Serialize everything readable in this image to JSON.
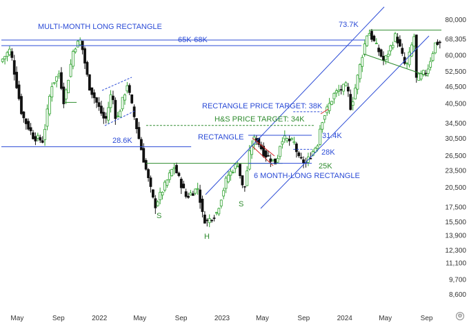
{
  "chart_data": {
    "type": "candlestick",
    "price_scale": "log",
    "ylim": [
      8000,
      90000
    ],
    "y_ticks": [
      {
        "label": "80,000",
        "value": 80000
      },
      {
        "label": "68,305",
        "value": 68305
      },
      {
        "label": "60,000",
        "value": 60000
      },
      {
        "label": "52,500",
        "value": 52500
      },
      {
        "label": "46,500",
        "value": 46500
      },
      {
        "label": "40,500",
        "value": 40500
      },
      {
        "label": "34,500",
        "value": 34500
      },
      {
        "label": "30,500",
        "value": 30500
      },
      {
        "label": "26,500",
        "value": 26500
      },
      {
        "label": "23,500",
        "value": 23500
      },
      {
        "label": "20,500",
        "value": 20500
      },
      {
        "label": "17,500",
        "value": 17500
      },
      {
        "label": "15,500",
        "value": 15500
      },
      {
        "label": "13,900",
        "value": 13900
      },
      {
        "label": "12,300",
        "value": 12300
      },
      {
        "label": "11,100",
        "value": 11100
      },
      {
        "label": "9,700",
        "value": 9700
      },
      {
        "label": "8,600",
        "value": 8600
      }
    ],
    "x_start": "2021-03-15",
    "x_end": "2024-10-15",
    "x_ticks": [
      {
        "label": "May",
        "date": "2021-05-01"
      },
      {
        "label": "Sep",
        "date": "2021-09-01"
      },
      {
        "label": "2022",
        "date": "2022-01-01"
      },
      {
        "label": "May",
        "date": "2022-05-01"
      },
      {
        "label": "Sep",
        "date": "2022-09-01"
      },
      {
        "label": "2023",
        "date": "2023-01-01"
      },
      {
        "label": "May",
        "date": "2023-05-01"
      },
      {
        "label": "Sep",
        "date": "2023-09-01"
      },
      {
        "label": "2024",
        "date": "2024-01-01"
      },
      {
        "label": "May",
        "date": "2024-05-01"
      },
      {
        "label": "Sep",
        "date": "2024-09-01"
      }
    ],
    "grid": false,
    "colors": {
      "up": "#2ca02c",
      "down": "#111111",
      "blue": "#2b4bd6",
      "green": "#2e8b2e",
      "red": "#d62728"
    },
    "price_points": [
      [
        "2021-03-15",
        57000
      ],
      [
        "2021-04-14",
        63000
      ],
      [
        "2021-05-19",
        37000
      ],
      [
        "2021-06-22",
        31000
      ],
      [
        "2021-07-20",
        30000
      ],
      [
        "2021-08-14",
        47000
      ],
      [
        "2021-09-07",
        52000
      ],
      [
        "2021-09-21",
        41000
      ],
      [
        "2021-10-20",
        64000
      ],
      [
        "2021-11-10",
        68000
      ],
      [
        "2021-12-04",
        47000
      ],
      [
        "2022-01-22",
        35000
      ],
      [
        "2022-02-10",
        45000
      ],
      [
        "2022-02-24",
        35000
      ],
      [
        "2022-03-28",
        47500
      ],
      [
        "2022-05-12",
        27000
      ],
      [
        "2022-06-18",
        17600
      ],
      [
        "2022-07-15",
        20500
      ],
      [
        "2022-08-14",
        24500
      ],
      [
        "2022-09-20",
        19000
      ],
      [
        "2022-10-25",
        20500
      ],
      [
        "2022-11-09",
        16000
      ],
      [
        "2022-11-21",
        15600
      ],
      [
        "2022-12-20",
        16800
      ],
      [
        "2023-01-20",
        22500
      ],
      [
        "2023-02-20",
        25000
      ],
      [
        "2023-03-10",
        19600
      ],
      [
        "2023-03-30",
        28500
      ],
      [
        "2023-04-14",
        31000
      ],
      [
        "2023-05-10",
        27000
      ],
      [
        "2023-06-15",
        25000
      ],
      [
        "2023-06-30",
        30800
      ],
      [
        "2023-08-10",
        29400
      ],
      [
        "2023-08-18",
        26000
      ],
      [
        "2023-09-11",
        25000
      ],
      [
        "2023-10-20",
        30000
      ],
      [
        "2023-10-24",
        34500
      ],
      [
        "2023-12-05",
        44000
      ],
      [
        "2024-01-11",
        47000
      ],
      [
        "2024-01-23",
        39000
      ],
      [
        "2024-02-28",
        62000
      ],
      [
        "2024-03-14",
        73700
      ],
      [
        "2024-05-01",
        57000
      ],
      [
        "2024-06-05",
        71000
      ],
      [
        "2024-07-05",
        54000
      ],
      [
        "2024-07-29",
        70000
      ],
      [
        "2024-08-05",
        49500
      ],
      [
        "2024-09-06",
        53000
      ],
      [
        "2024-09-30",
        66000
      ],
      [
        "2024-10-15",
        67000
      ]
    ],
    "annotations": [
      {
        "text": "MULTI-MONTH LONG RECTANGLE",
        "color": "blue"
      },
      {
        "text": "65K-68K",
        "color": "blue"
      },
      {
        "text": "73.7K",
        "color": "blue"
      },
      {
        "text": "RECTANGLE PRICE TARGET: 38K",
        "color": "blue"
      },
      {
        "text": "H&S PRICE TARGET: 34K",
        "color": "green"
      },
      {
        "text": "28.6K",
        "color": "blue"
      },
      {
        "text": "RECTANGLE",
        "color": "blue"
      },
      {
        "text": "31.4K",
        "color": "blue"
      },
      {
        "text": "28K",
        "color": "blue"
      },
      {
        "text": "25K",
        "color": "green"
      },
      {
        "text": "6 MONTH-LONG RECTANGLE",
        "color": "blue"
      },
      {
        "text": "S",
        "color": "green"
      },
      {
        "text": "S",
        "color": "green"
      },
      {
        "text": "H",
        "color": "green"
      }
    ],
    "levels": [
      {
        "value": 68000,
        "from": "2021-03-15",
        "to": "2024-03-01",
        "color": "blue"
      },
      {
        "value": 65000,
        "from": "2021-03-15",
        "to": "2024-02-20",
        "color": "blue"
      },
      {
        "value": 28600,
        "from": "2021-03-15",
        "to": "2022-10-01",
        "color": "blue"
      },
      {
        "value": 25000,
        "from": "2022-05-20",
        "to": "2023-06-30",
        "color": "green"
      },
      {
        "value": 31400,
        "from": "2023-03-20",
        "to": "2023-09-25",
        "color": "blue"
      },
      {
        "value": 25000,
        "from": "2023-03-20",
        "to": "2023-09-25",
        "color": "blue"
      },
      {
        "value": 28000,
        "from": "2023-08-01",
        "to": "2023-09-25",
        "color": "blue"
      },
      {
        "value": 38000,
        "from": "2023-08-01",
        "to": "2023-10-25",
        "color": "blue"
      },
      {
        "value": 34000,
        "from": "2022-05-20",
        "to": "2023-10-01",
        "color": "green"
      },
      {
        "value": 41000,
        "from": "2021-09-18",
        "to": "2021-10-25",
        "color": "green"
      },
      {
        "value": 73700,
        "from": "2024-03-14",
        "to": "2024-10-15",
        "color": "green"
      }
    ]
  },
  "ui": {
    "settings_icon": "gear-icon"
  }
}
